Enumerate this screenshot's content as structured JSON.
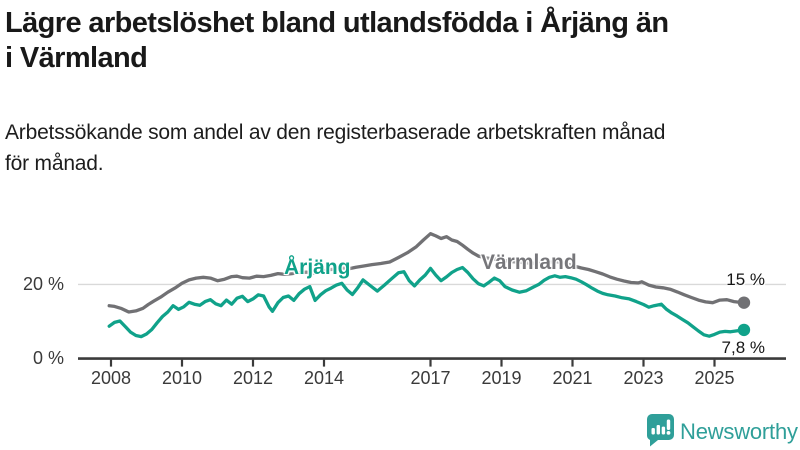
{
  "header": {
    "title_line1": "Lägre arbetslöshet bland utlandsfödda i Årjäng än",
    "title_line2": "i Värmland",
    "subtitle_line1": "Arbetssökande som andel av den registerbaserade arbetskraften månad",
    "subtitle_line2": "för månad."
  },
  "colors": {
    "arjang_teal": "#10a28a",
    "varmland_gray": "#717174",
    "axis": "#3b3b3b",
    "tick_label": "#3a3a3a",
    "gridline": "#d9d9d9",
    "title_text": "#191919",
    "brand_teal": "#2f9f99"
  },
  "chart_data": {
    "type": "line",
    "title": "",
    "xlabel": "",
    "ylabel": "",
    "unit": "%",
    "xlim": [
      2006.95,
      2027.05
    ],
    "ylim": [
      0,
      37
    ],
    "grid": "single horizontal gridline at 20 %",
    "legend_position": "inline labels beside lines",
    "y_ticks": [
      {
        "value": 0,
        "label": "0 %"
      },
      {
        "value": 20,
        "label": "20 %"
      }
    ],
    "x_ticks": [
      {
        "year": 2008,
        "label": "2008"
      },
      {
        "year": 2010,
        "label": "2010"
      },
      {
        "year": 2012,
        "label": "2012"
      },
      {
        "year": 2014,
        "label": "2014"
      },
      {
        "year": 2017,
        "label": "2017"
      },
      {
        "year": 2019,
        "label": "2019"
      },
      {
        "year": 2021,
        "label": "2021"
      },
      {
        "year": 2023,
        "label": "2023"
      },
      {
        "year": 2025,
        "label": "2025"
      }
    ],
    "gridline_value": 20,
    "series": [
      {
        "name": "Värmland",
        "color": "#717174",
        "end_label": "15 %",
        "end_value": 15.1,
        "points": [
          [
            2007.95,
            14.3
          ],
          [
            2008.1,
            14.1
          ],
          [
            2008.3,
            13.5
          ],
          [
            2008.5,
            12.6
          ],
          [
            2008.7,
            12.9
          ],
          [
            2008.9,
            13.6
          ],
          [
            2009.05,
            14.6
          ],
          [
            2009.2,
            15.5
          ],
          [
            2009.4,
            16.6
          ],
          [
            2009.6,
            17.9
          ],
          [
            2009.8,
            19.0
          ],
          [
            2010.0,
            20.3
          ],
          [
            2010.2,
            21.2
          ],
          [
            2010.4,
            21.7
          ],
          [
            2010.6,
            21.9
          ],
          [
            2010.8,
            21.7
          ],
          [
            2011.0,
            21.0
          ],
          [
            2011.2,
            21.4
          ],
          [
            2011.4,
            22.1
          ],
          [
            2011.55,
            22.2
          ],
          [
            2011.7,
            21.8
          ],
          [
            2011.9,
            21.7
          ],
          [
            2012.1,
            22.2
          ],
          [
            2012.3,
            22.1
          ],
          [
            2012.5,
            22.4
          ],
          [
            2012.7,
            22.9
          ],
          [
            2012.9,
            22.7
          ],
          [
            2013.1,
            22.9
          ],
          [
            2013.3,
            23.2
          ],
          [
            2013.5,
            23.3
          ],
          [
            2013.7,
            23.0
          ],
          [
            2013.9,
            23.4
          ],
          [
            2014.1,
            23.9
          ],
          [
            2014.3,
            24.1
          ],
          [
            2014.5,
            24.4
          ],
          [
            2014.7,
            24.2
          ],
          [
            2014.9,
            24.6
          ],
          [
            2015.1,
            24.9
          ],
          [
            2015.35,
            25.3
          ],
          [
            2015.6,
            25.6
          ],
          [
            2015.85,
            26.0
          ],
          [
            2016.1,
            27.2
          ],
          [
            2016.35,
            28.5
          ],
          [
            2016.6,
            30.1
          ],
          [
            2016.8,
            31.9
          ],
          [
            2017.0,
            33.6
          ],
          [
            2017.15,
            33.0
          ],
          [
            2017.3,
            32.3
          ],
          [
            2017.45,
            32.8
          ],
          [
            2017.6,
            31.9
          ],
          [
            2017.75,
            31.5
          ],
          [
            2017.9,
            30.5
          ],
          [
            2018.05,
            29.4
          ],
          [
            2018.2,
            28.4
          ],
          [
            2018.35,
            27.6
          ],
          [
            2018.55,
            27.1
          ],
          [
            2018.8,
            26.8
          ],
          [
            2019.05,
            26.4
          ],
          [
            2019.3,
            26.1
          ],
          [
            2019.55,
            25.9
          ],
          [
            2019.8,
            25.7
          ],
          [
            2020.05,
            25.6
          ],
          [
            2020.3,
            25.9
          ],
          [
            2020.55,
            26.1
          ],
          [
            2020.8,
            25.6
          ],
          [
            2021.05,
            24.9
          ],
          [
            2021.25,
            24.4
          ],
          [
            2021.45,
            24.0
          ],
          [
            2021.65,
            23.4
          ],
          [
            2021.85,
            22.8
          ],
          [
            2022.05,
            22.0
          ],
          [
            2022.25,
            21.4
          ],
          [
            2022.45,
            20.9
          ],
          [
            2022.65,
            20.5
          ],
          [
            2022.85,
            20.4
          ],
          [
            2022.95,
            20.7
          ],
          [
            2023.15,
            19.8
          ],
          [
            2023.35,
            19.3
          ],
          [
            2023.55,
            19.1
          ],
          [
            2023.75,
            18.7
          ],
          [
            2023.95,
            18.0
          ],
          [
            2024.15,
            17.2
          ],
          [
            2024.35,
            16.5
          ],
          [
            2024.55,
            15.8
          ],
          [
            2024.75,
            15.3
          ],
          [
            2024.95,
            15.1
          ],
          [
            2025.15,
            15.8
          ],
          [
            2025.35,
            15.9
          ],
          [
            2025.55,
            15.4
          ],
          [
            2025.7,
            15.2
          ],
          [
            2025.83,
            15.1
          ]
        ]
      },
      {
        "name": "Årjäng",
        "color": "#10a28a",
        "end_label": "7,8 %",
        "end_value": 7.8,
        "points": [
          [
            2007.95,
            8.8
          ],
          [
            2008.1,
            9.8
          ],
          [
            2008.25,
            10.2
          ],
          [
            2008.4,
            8.7
          ],
          [
            2008.55,
            7.2
          ],
          [
            2008.7,
            6.3
          ],
          [
            2008.85,
            6.0
          ],
          [
            2009.0,
            6.7
          ],
          [
            2009.15,
            7.9
          ],
          [
            2009.3,
            9.7
          ],
          [
            2009.45,
            11.4
          ],
          [
            2009.6,
            12.6
          ],
          [
            2009.75,
            14.3
          ],
          [
            2009.9,
            13.3
          ],
          [
            2010.05,
            14.0
          ],
          [
            2010.2,
            15.2
          ],
          [
            2010.35,
            14.7
          ],
          [
            2010.5,
            14.4
          ],
          [
            2010.65,
            15.4
          ],
          [
            2010.8,
            15.9
          ],
          [
            2010.95,
            14.8
          ],
          [
            2011.1,
            14.3
          ],
          [
            2011.25,
            15.8
          ],
          [
            2011.4,
            14.7
          ],
          [
            2011.55,
            16.3
          ],
          [
            2011.7,
            16.8
          ],
          [
            2011.85,
            15.4
          ],
          [
            2012.0,
            16.1
          ],
          [
            2012.15,
            17.2
          ],
          [
            2012.3,
            16.9
          ],
          [
            2012.45,
            14.0
          ],
          [
            2012.55,
            12.8
          ],
          [
            2012.7,
            15.1
          ],
          [
            2012.85,
            16.5
          ],
          [
            2013.0,
            16.9
          ],
          [
            2013.15,
            15.7
          ],
          [
            2013.3,
            17.5
          ],
          [
            2013.45,
            18.7
          ],
          [
            2013.6,
            19.4
          ],
          [
            2013.75,
            15.7
          ],
          [
            2013.9,
            17.2
          ],
          [
            2014.05,
            18.3
          ],
          [
            2014.2,
            19.0
          ],
          [
            2014.35,
            19.8
          ],
          [
            2014.5,
            20.3
          ],
          [
            2014.65,
            18.5
          ],
          [
            2014.8,
            17.3
          ],
          [
            2014.95,
            19.1
          ],
          [
            2015.1,
            21.2
          ],
          [
            2015.3,
            19.7
          ],
          [
            2015.5,
            18.2
          ],
          [
            2015.7,
            19.8
          ],
          [
            2015.9,
            21.5
          ],
          [
            2016.1,
            23.1
          ],
          [
            2016.25,
            23.4
          ],
          [
            2016.4,
            21.0
          ],
          [
            2016.55,
            19.6
          ],
          [
            2016.7,
            21.2
          ],
          [
            2016.85,
            22.5
          ],
          [
            2017.0,
            24.3
          ],
          [
            2017.15,
            22.5
          ],
          [
            2017.3,
            21.0
          ],
          [
            2017.45,
            22.0
          ],
          [
            2017.6,
            23.2
          ],
          [
            2017.75,
            24.0
          ],
          [
            2017.9,
            24.5
          ],
          [
            2018.05,
            23.2
          ],
          [
            2018.2,
            21.5
          ],
          [
            2018.35,
            20.2
          ],
          [
            2018.5,
            19.6
          ],
          [
            2018.65,
            20.6
          ],
          [
            2018.8,
            21.7
          ],
          [
            2018.95,
            21.0
          ],
          [
            2019.1,
            19.4
          ],
          [
            2019.3,
            18.5
          ],
          [
            2019.5,
            17.9
          ],
          [
            2019.7,
            18.3
          ],
          [
            2019.9,
            19.3
          ],
          [
            2020.05,
            20.0
          ],
          [
            2020.2,
            21.1
          ],
          [
            2020.35,
            21.9
          ],
          [
            2020.5,
            22.3
          ],
          [
            2020.65,
            21.9
          ],
          [
            2020.8,
            22.1
          ],
          [
            2020.95,
            21.8
          ],
          [
            2021.1,
            21.4
          ],
          [
            2021.25,
            20.7
          ],
          [
            2021.4,
            19.9
          ],
          [
            2021.55,
            19.0
          ],
          [
            2021.7,
            18.2
          ],
          [
            2021.85,
            17.6
          ],
          [
            2022.0,
            17.2
          ],
          [
            2022.2,
            16.9
          ],
          [
            2022.4,
            16.4
          ],
          [
            2022.6,
            16.1
          ],
          [
            2022.8,
            15.4
          ],
          [
            2023.0,
            14.6
          ],
          [
            2023.15,
            13.9
          ],
          [
            2023.3,
            14.3
          ],
          [
            2023.5,
            14.7
          ],
          [
            2023.65,
            13.3
          ],
          [
            2023.8,
            12.3
          ],
          [
            2023.95,
            11.5
          ],
          [
            2024.1,
            10.6
          ],
          [
            2024.25,
            9.7
          ],
          [
            2024.4,
            8.6
          ],
          [
            2024.55,
            7.5
          ],
          [
            2024.7,
            6.5
          ],
          [
            2024.85,
            6.1
          ],
          [
            2025.0,
            6.6
          ],
          [
            2025.15,
            7.2
          ],
          [
            2025.3,
            7.4
          ],
          [
            2025.45,
            7.3
          ],
          [
            2025.6,
            7.5
          ],
          [
            2025.83,
            7.8
          ]
        ]
      }
    ]
  },
  "footer": {
    "brand": "Newsworthy"
  }
}
